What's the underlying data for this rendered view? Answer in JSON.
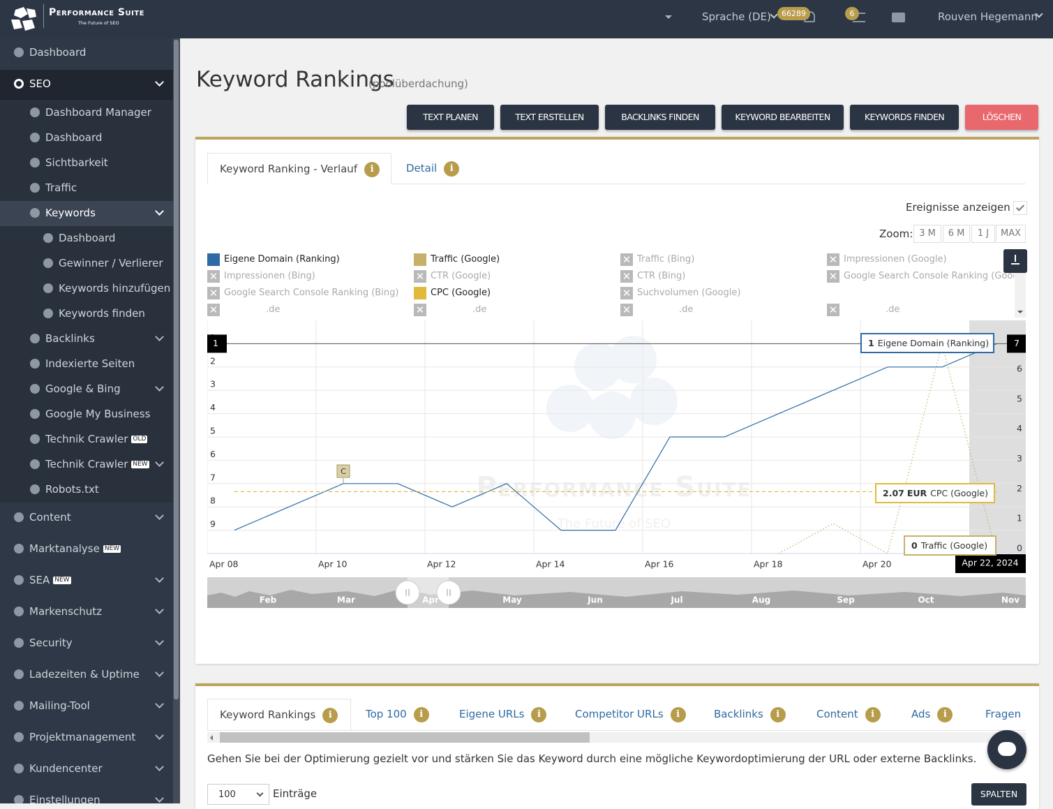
{
  "header": {
    "brand": "Performance Suite",
    "tagline": "The Future of SEO",
    "language": "Sprache (DE)",
    "notifications": "66289",
    "tasks": "6",
    "user": "Rouven Hegemann"
  },
  "sidebar": {
    "items": [
      {
        "label": "Dashboard"
      },
      {
        "label": "SEO"
      },
      {
        "label": "Dashboard Manager"
      },
      {
        "label": "Dashboard"
      },
      {
        "label": "Sichtbarkeit"
      },
      {
        "label": "Traffic"
      },
      {
        "label": "Keywords"
      },
      {
        "label": "Dashboard"
      },
      {
        "label": "Gewinner / Verlierer"
      },
      {
        "label": "Keywords hinzufügen"
      },
      {
        "label": "Keywords finden"
      },
      {
        "label": "Backlinks"
      },
      {
        "label": "Indexierte Seiten"
      },
      {
        "label": "Google & Bing"
      },
      {
        "label": "Google My Business"
      },
      {
        "label": "Technik Crawler",
        "badge": "OLD"
      },
      {
        "label": "Technik Crawler",
        "badge": "NEW"
      },
      {
        "label": "Robots.txt"
      },
      {
        "label": "Content"
      },
      {
        "label": "Marktanalyse",
        "badge": "NEW"
      },
      {
        "label": "SEA",
        "badge": "NEW"
      },
      {
        "label": "Markenschutz"
      },
      {
        "label": "Security"
      },
      {
        "label": "Ladezeiten & Uptime"
      },
      {
        "label": "Mailing-Tool"
      },
      {
        "label": "Projektmanagement"
      },
      {
        "label": "Kundencenter"
      },
      {
        "label": "Einstellungen"
      }
    ]
  },
  "page": {
    "title": "Keyword Rankings",
    "subtitle": "(poolüberdachung)",
    "buttons": [
      "TEXT PLANEN",
      "TEXT ERSTELLEN",
      "BACKLINKS FINDEN",
      "KEYWORD BEARBEITEN",
      "KEYWORDS FINDEN",
      "LÖSCHEN"
    ]
  },
  "panel": {
    "tabs": [
      "Keyword Ranking - Verlauf",
      "Detail"
    ],
    "events_toggle": "Ereignisse anzeigen",
    "zoom_label": "Zoom:",
    "zoom_options": [
      "3 M",
      "6 M",
      "1 J",
      "MAX"
    ]
  },
  "chart_data": {
    "type": "line",
    "categories": [
      "Apr 08",
      null,
      "Apr 10",
      null,
      "Apr 12",
      null,
      "Apr 14",
      null,
      "Apr 16",
      null,
      "Apr 18",
      null,
      "Apr 20",
      null,
      null
    ],
    "series": [
      {
        "name": "Eigene Domain (Ranking)",
        "color": "#2e6aa3",
        "values": [
          9,
          8,
          7,
          7,
          8,
          7,
          9,
          9,
          5,
          5,
          4,
          3,
          2,
          2,
          1
        ]
      },
      {
        "name": "Traffic (Google)",
        "color": "#c8b06a",
        "axis": "y2",
        "dash": "dot",
        "values": [
          null,
          null,
          null,
          null,
          null,
          null,
          null,
          null,
          null,
          null,
          0,
          1,
          0,
          7,
          0
        ]
      },
      {
        "name": "CPC (Google)",
        "color": "#e1b93d",
        "axis": "y2",
        "dash": "dash",
        "unit": "EUR",
        "values": [
          2.07,
          2.07,
          2.07,
          2.07,
          2.07,
          2.07,
          2.07,
          2.07,
          2.07,
          2.07,
          2.07,
          2.07,
          2.07,
          2.07,
          2.07
        ]
      }
    ],
    "hidden_series": [
      "Traffic (Bing)",
      "Impressionen (Google)",
      "Impressionen (Bing)",
      "CTR (Google)",
      "CTR (Bing)",
      "Google Search Console Ranking (Google)",
      "Google Search Console Ranking (Bing)",
      "Suchvolumen (Google)",
      ".de",
      ".de",
      ".de",
      ".de"
    ],
    "ylim": [
      10,
      0
    ],
    "yticks": [
      1,
      2,
      3,
      4,
      5,
      6,
      7,
      8,
      9
    ],
    "y2lim": [
      0,
      7.8
    ],
    "y2ticks": [
      0,
      1,
      2,
      3,
      4,
      5,
      6,
      7
    ],
    "grid": true,
    "crosshair_label": "Apr 22, 2024",
    "events": [
      {
        "x": "Apr 10",
        "label": "C"
      }
    ]
  },
  "navigator": {
    "months": [
      "Feb",
      "Mar",
      "Apr",
      "May",
      "Jun",
      "Jul",
      "Aug",
      "Sep",
      "Oct",
      "Nov"
    ]
  },
  "watermark": {
    "title": "Performance Suite",
    "subtitle": "The Future of SEO"
  },
  "table_panel": {
    "tabs": [
      "Keyword Rankings",
      "Top 100",
      "Eigene URLs",
      "Competitor URLs",
      "Backlinks",
      "Content",
      "Ads",
      "Fragen"
    ],
    "description": "Gehen Sie bei der Optimierung gezielt vor und stärken Sie das Keyword durch eine mögliche Keywordoptimierung der URL oder externe Backlinks.",
    "page_size": "100",
    "page_size_label": "Einträge",
    "columns_button": "SPALTEN"
  }
}
